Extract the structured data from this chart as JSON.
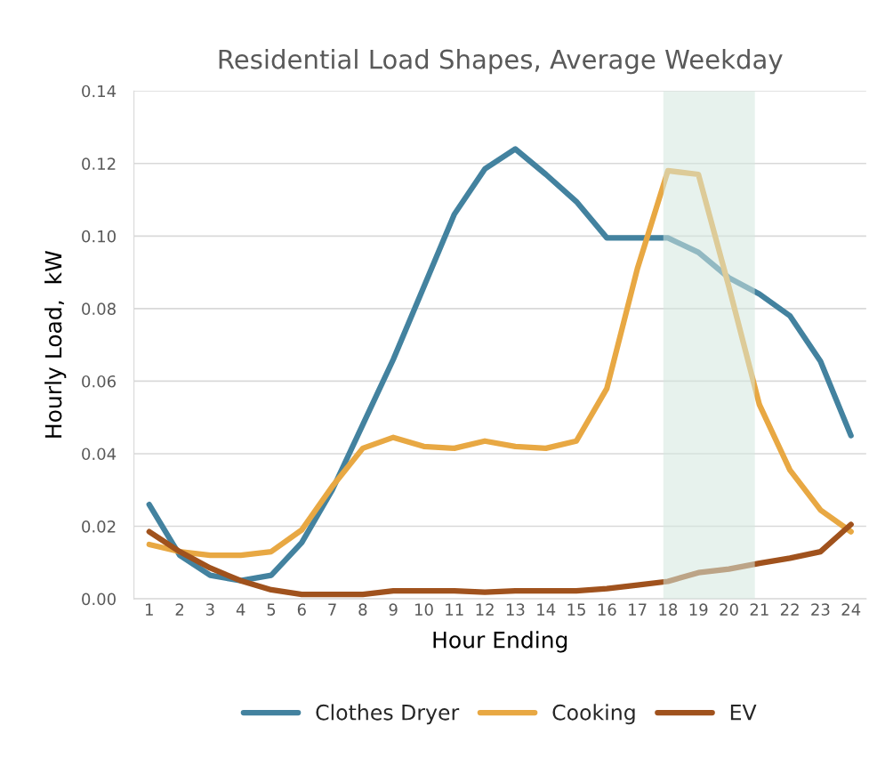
{
  "chart_data": {
    "type": "line",
    "title": "Residential Load Shapes, Average Weekday",
    "xlabel": "Hour Ending",
    "ylabel": "Hourly Load,  kW",
    "x": [
      1,
      2,
      3,
      4,
      5,
      6,
      7,
      8,
      9,
      10,
      11,
      12,
      13,
      14,
      15,
      16,
      17,
      18,
      19,
      20,
      21,
      22,
      23,
      24
    ],
    "series": [
      {
        "name": "Clothes Dryer",
        "color": "#43829f",
        "values": [
          0.026,
          0.012,
          0.0065,
          0.005,
          0.0065,
          0.0155,
          0.03,
          0.048,
          0.066,
          0.086,
          0.106,
          0.1185,
          0.124,
          0.117,
          0.1095,
          0.0995,
          0.0995,
          0.0995,
          0.0955,
          0.0885,
          0.084,
          0.078,
          0.0655,
          0.045
        ]
      },
      {
        "name": "Cooking",
        "color": "#e8a843",
        "values": [
          0.015,
          0.013,
          0.012,
          0.012,
          0.013,
          0.019,
          0.031,
          0.0415,
          0.0445,
          0.042,
          0.0415,
          0.0435,
          0.042,
          0.0415,
          0.0435,
          0.058,
          0.091,
          0.118,
          0.117,
          0.086,
          0.0535,
          0.0355,
          0.0245,
          0.0185
        ]
      },
      {
        "name": "EV",
        "color": "#a0521d",
        "values": [
          0.0185,
          0.013,
          0.0085,
          0.005,
          0.0025,
          0.0012,
          0.0012,
          0.0012,
          0.0022,
          0.0022,
          0.0022,
          0.0018,
          0.0022,
          0.0022,
          0.0022,
          0.0028,
          0.0038,
          0.0048,
          0.0072,
          0.0082,
          0.0098,
          0.0112,
          0.013,
          0.0205
        ]
      }
    ],
    "xlim": [
      0.5,
      24.5
    ],
    "xticks": [
      1,
      2,
      3,
      4,
      5,
      6,
      7,
      8,
      9,
      10,
      11,
      12,
      13,
      14,
      15,
      16,
      17,
      18,
      19,
      20,
      21,
      22,
      23,
      24
    ],
    "ylim": [
      0,
      0.14
    ],
    "yticks": [
      {
        "value": 0,
        "label": "0.00"
      },
      {
        "value": 0.02,
        "label": "0.02"
      },
      {
        "value": 0.04,
        "label": "0.04"
      },
      {
        "value": 0.06,
        "label": "0.06"
      },
      {
        "value": 0.08,
        "label": "0.08"
      },
      {
        "value": 0.1,
        "label": "0.10"
      },
      {
        "value": 0.12,
        "label": "0.12"
      },
      {
        "value": 0.14,
        "label": "0.14"
      }
    ],
    "bands": [
      {
        "axis": "x",
        "from": 17.85,
        "to": 20.85,
        "color": "#d3e7df"
      }
    ],
    "grid": "y",
    "legend": "bottom",
    "marker": "none",
    "line_style": "solid"
  }
}
